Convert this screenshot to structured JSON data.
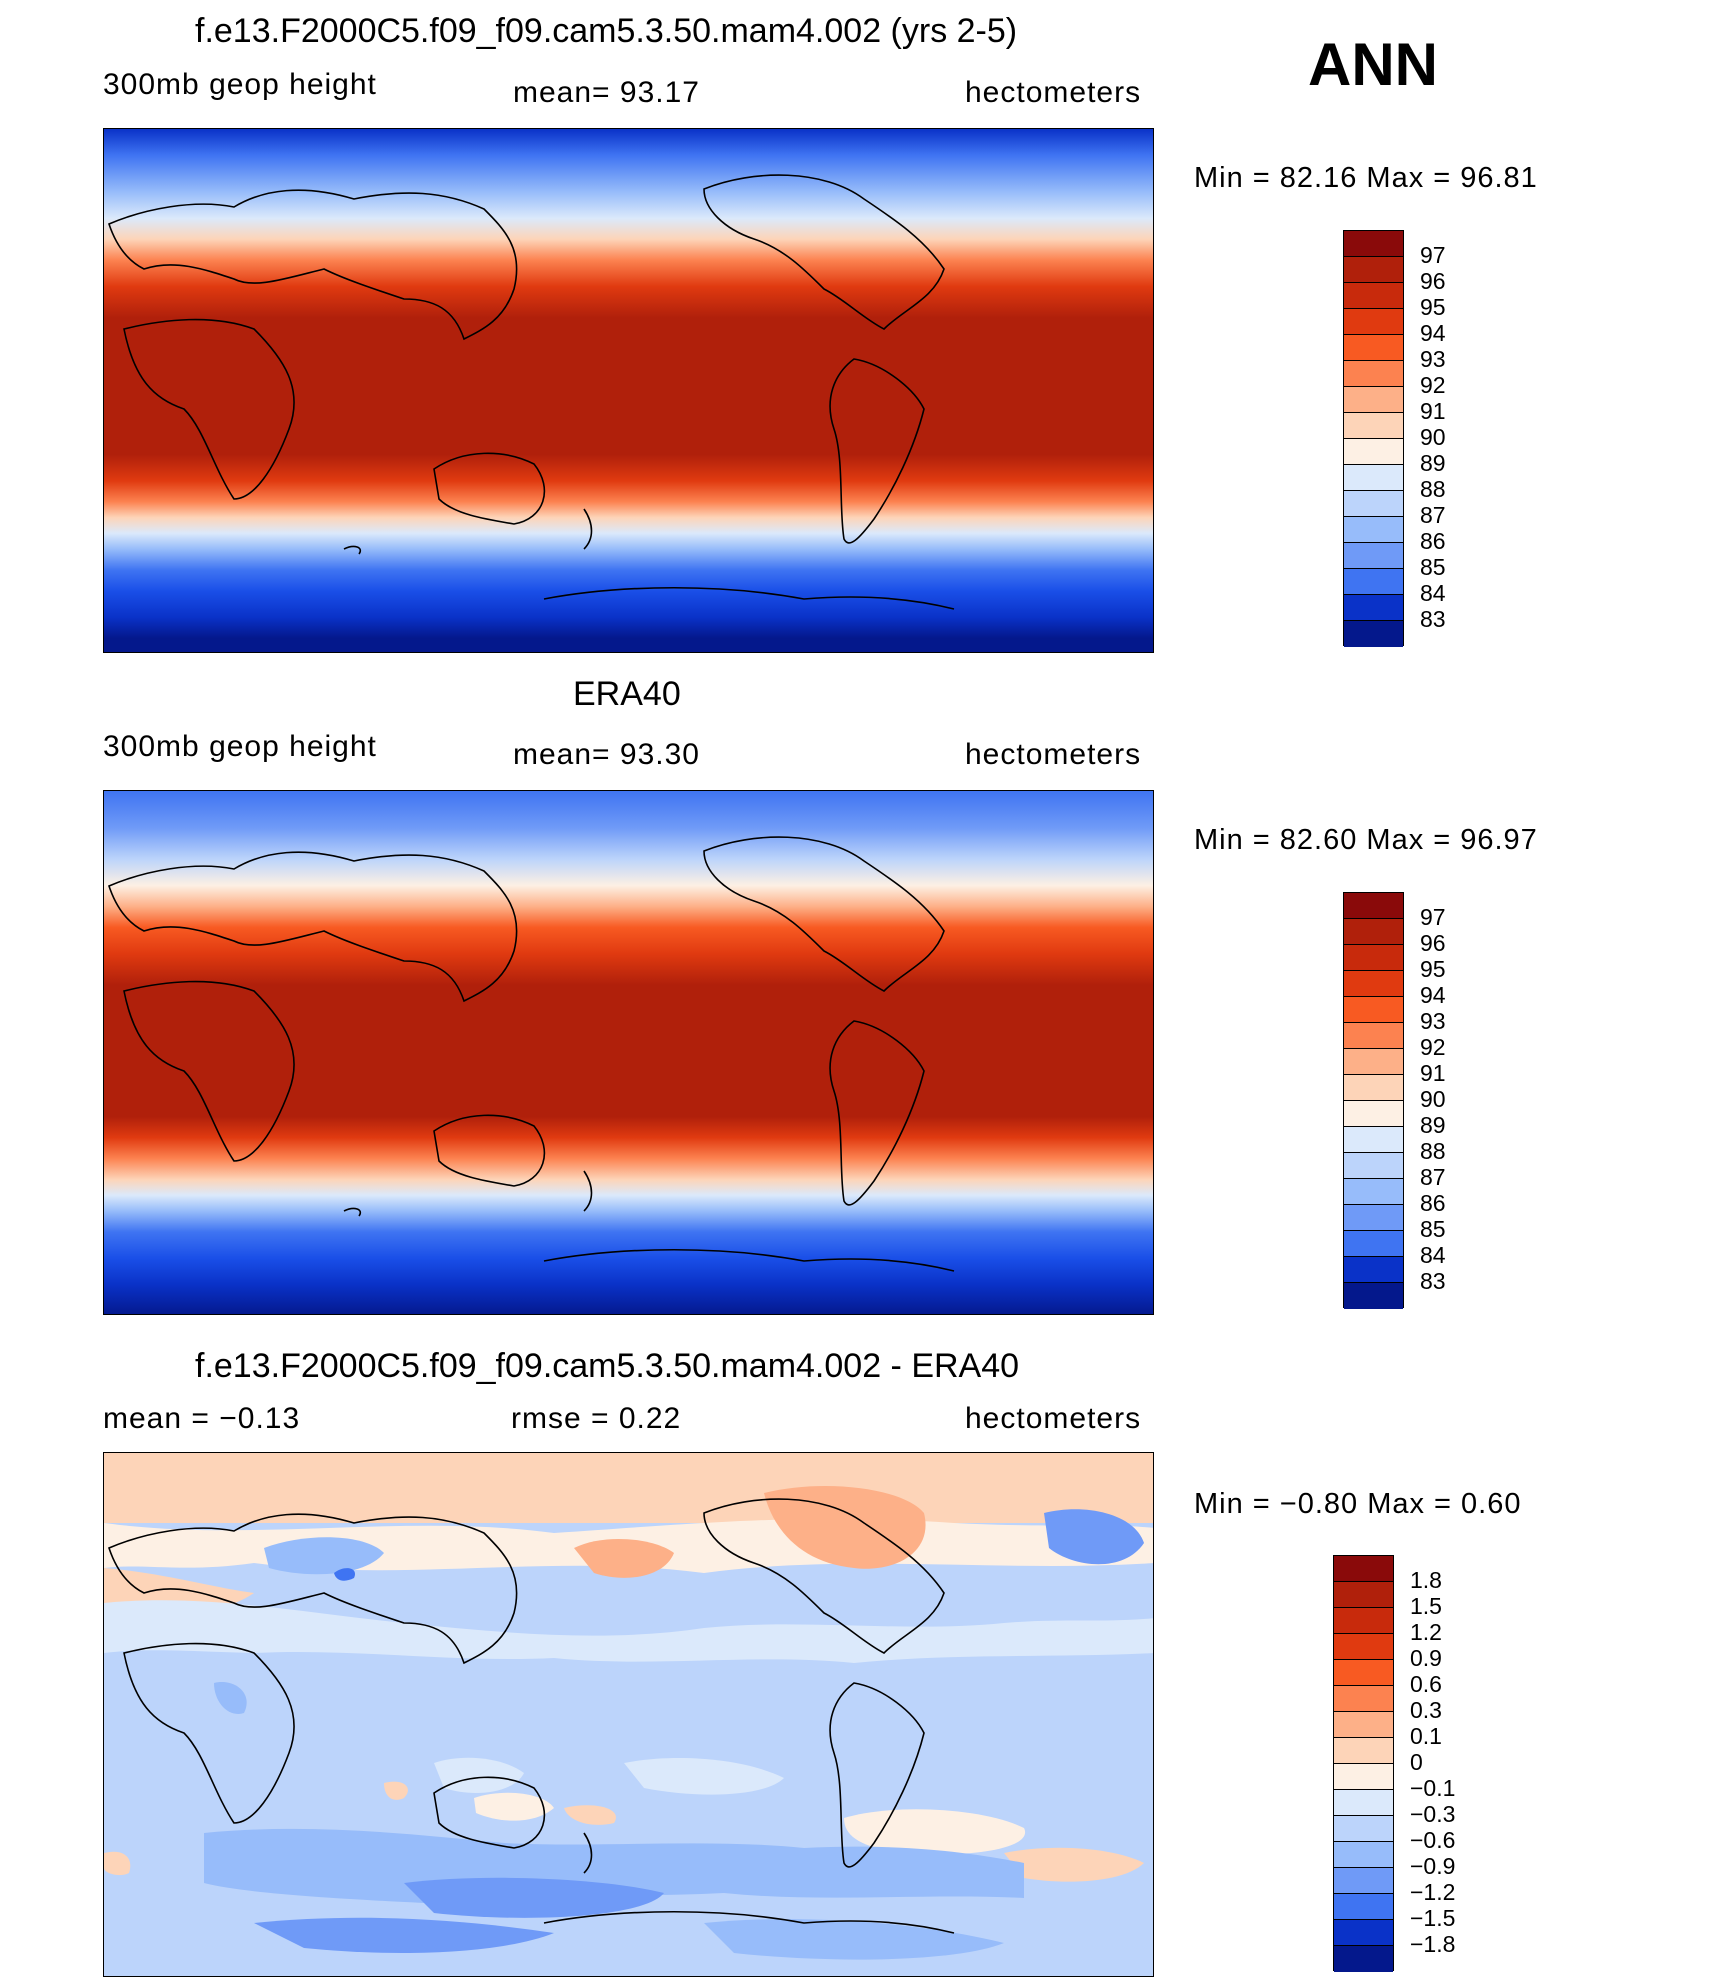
{
  "season": "ANN",
  "units": "hectometers",
  "panels": [
    {
      "title": "f.e13.F2000C5.f09_f09.cam5.3.50.mam4.002 (yrs 2-5)",
      "left_label": "300mb  geop  height",
      "mean_text": "mean=   93.17",
      "right_label": "hectometers",
      "minmax": "Min  =    82.16  Max  =    96.81",
      "colorbar_labels": [
        "97",
        "96",
        "95",
        "94",
        "93",
        "92",
        "91",
        "90",
        "89",
        "88",
        "87",
        "86",
        "85",
        "84",
        "83"
      ]
    },
    {
      "title": "ERA40",
      "left_label": "300mb  geop  height",
      "mean_text": "mean=   93.30",
      "right_label": "hectometers",
      "minmax": "Min  =    82.60  Max  =    96.97",
      "colorbar_labels": [
        "97",
        "96",
        "95",
        "94",
        "93",
        "92",
        "91",
        "90",
        "89",
        "88",
        "87",
        "86",
        "85",
        "84",
        "83"
      ]
    },
    {
      "title": "f.e13.F2000C5.f09_f09.cam5.3.50.mam4.002 - ERA40",
      "left_label": "mean  =    −0.13",
      "mean_text": "rmse  =     0.22",
      "right_label": "hectometers",
      "minmax": "Min  =   −0.80  Max  =      0.60",
      "colorbar_labels": [
        "1.8",
        "1.5",
        "1.2",
        "0.9",
        "0.6",
        "0.3",
        "0.1",
        "0",
        "−0.1",
        "−0.3",
        "−0.6",
        "−0.9",
        "−1.2",
        "−1.5",
        "−1.8"
      ]
    }
  ],
  "colors": {
    "abs_scale": [
      "#8a0a0a",
      "#b0200b",
      "#e03a10",
      "#f85a22",
      "#fc8250",
      "#fdb088",
      "#fdd4b8",
      "#fdf0e4",
      "#dbe9fb",
      "#bcd4fb",
      "#97bcfa",
      "#6f9af7",
      "#3f74f2",
      "#1a4fe8",
      "#0a32c8",
      "#04188c"
    ],
    "diff_scale": [
      "#8a0a0a",
      "#b0200b",
      "#e03a10",
      "#f85a22",
      "#fc8250",
      "#fdb088",
      "#fdd4b8",
      "#fdf0e4",
      "#dbe9fb",
      "#bcd4fb",
      "#97bcfa",
      "#6f9af7",
      "#3f74f2",
      "#1a4fe8",
      "#0a32c8",
      "#04188c"
    ]
  }
}
